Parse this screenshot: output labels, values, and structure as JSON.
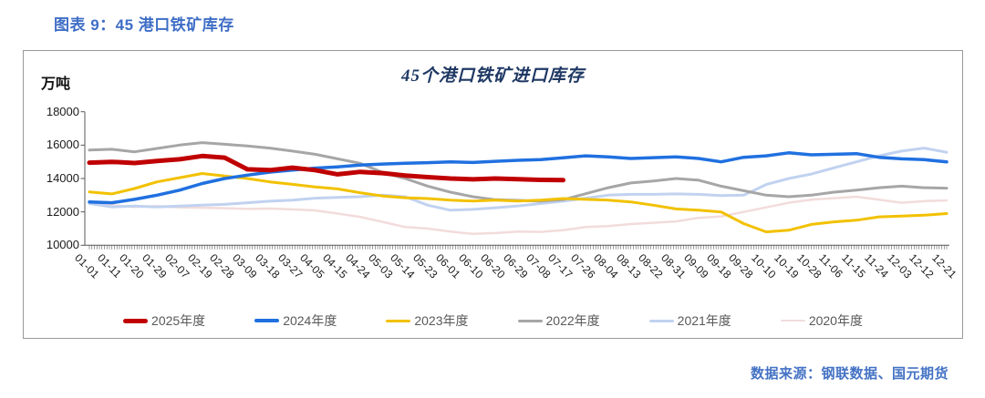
{
  "page": {
    "title": "图表 9：45 港口铁矿库存",
    "source": "数据来源：钢联数据、国元期货"
  },
  "chart_data": {
    "type": "line",
    "title": "45个港口铁矿进口库存",
    "unit_label": "万吨",
    "ylim": [
      10000,
      18000
    ],
    "yticks": [
      18000,
      16000,
      14000,
      12000,
      10000
    ],
    "grid": false,
    "legend_position": "bottom",
    "axis_color": "#595959",
    "categories": [
      "01-01",
      "01-11",
      "01-20",
      "01-29",
      "02-07",
      "02-19",
      "02-28",
      "03-09",
      "03-18",
      "03-27",
      "04-05",
      "04-15",
      "04-24",
      "05-03",
      "05-14",
      "05-23",
      "06-01",
      "06-10",
      "06-20",
      "06-29",
      "07-08",
      "07-17",
      "07-26",
      "08-04",
      "08-13",
      "08-22",
      "08-31",
      "09-09",
      "09-18",
      "09-28",
      "10-10",
      "10-19",
      "10-28",
      "11-06",
      "11-15",
      "11-24",
      "12-03",
      "12-12",
      "12-21"
    ],
    "series": [
      {
        "name": "2025年度",
        "color": "#c00000",
        "width": 5,
        "values": [
          14950,
          15000,
          14930,
          15050,
          15150,
          15350,
          15250,
          14550,
          14500,
          14650,
          14500,
          14250,
          14400,
          14320,
          14180,
          14080,
          14000,
          13950,
          14000,
          13960,
          13920,
          13900,
          null,
          null,
          null,
          null,
          null,
          null,
          null,
          null,
          null,
          null,
          null,
          null,
          null,
          null,
          null,
          null,
          null
        ]
      },
      {
        "name": "2024年度",
        "color": "#2070e0",
        "width": 3.5,
        "values": [
          12600,
          12550,
          12750,
          13000,
          13300,
          13700,
          14000,
          14200,
          14380,
          14500,
          14620,
          14700,
          14800,
          14870,
          14910,
          14950,
          15000,
          14960,
          15030,
          15090,
          15130,
          15240,
          15360,
          15300,
          15200,
          15250,
          15300,
          15200,
          15000,
          15270,
          15360,
          15540,
          15420,
          15450,
          15490,
          15270,
          15180,
          15130,
          15000
        ]
      },
      {
        "name": "2023年度",
        "color": "#f2c100",
        "width": 3,
        "values": [
          13200,
          13080,
          13400,
          13800,
          14050,
          14300,
          14150,
          14000,
          13800,
          13650,
          13500,
          13380,
          13150,
          12950,
          12850,
          12800,
          12700,
          12650,
          12700,
          12650,
          12700,
          12800,
          12750,
          12700,
          12600,
          12400,
          12180,
          12100,
          12000,
          11300,
          10800,
          10900,
          11250,
          11400,
          11500,
          11700,
          11750,
          11800,
          11900
        ]
      },
      {
        "name": "2022年度",
        "color": "#a6a6a6",
        "width": 3,
        "values": [
          15700,
          15750,
          15600,
          15800,
          16000,
          16150,
          16050,
          15950,
          15820,
          15640,
          15450,
          15180,
          14910,
          14360,
          14000,
          13540,
          13180,
          12910,
          12730,
          12690,
          12640,
          12730,
          13090,
          13450,
          13730,
          13850,
          14000,
          13900,
          13540,
          13270,
          13000,
          12910,
          13000,
          13180,
          13300,
          13450,
          13540,
          13450,
          13420
        ]
      },
      {
        "name": "2021年度",
        "color": "#c1d2f0",
        "width": 3,
        "values": [
          12500,
          12300,
          12350,
          12300,
          12350,
          12400,
          12450,
          12550,
          12640,
          12700,
          12820,
          12870,
          12910,
          13000,
          12910,
          12400,
          12100,
          12150,
          12250,
          12360,
          12500,
          12640,
          12820,
          13000,
          13050,
          13050,
          13080,
          13050,
          12980,
          13000,
          13640,
          14000,
          14270,
          14640,
          15000,
          15360,
          15640,
          15820,
          15570
        ]
      },
      {
        "name": "2020年度",
        "color": "#f2dcdb",
        "width": 2.5,
        "values": [
          12600,
          12400,
          12300,
          12350,
          12270,
          12250,
          12220,
          12180,
          12200,
          12150,
          12090,
          11900,
          11700,
          11400,
          11090,
          11000,
          10820,
          10680,
          10730,
          10820,
          10800,
          10900,
          11090,
          11150,
          11270,
          11350,
          11430,
          11640,
          11730,
          12000,
          12270,
          12550,
          12730,
          12820,
          12910,
          12730,
          12550,
          12640,
          12690
        ]
      }
    ]
  }
}
